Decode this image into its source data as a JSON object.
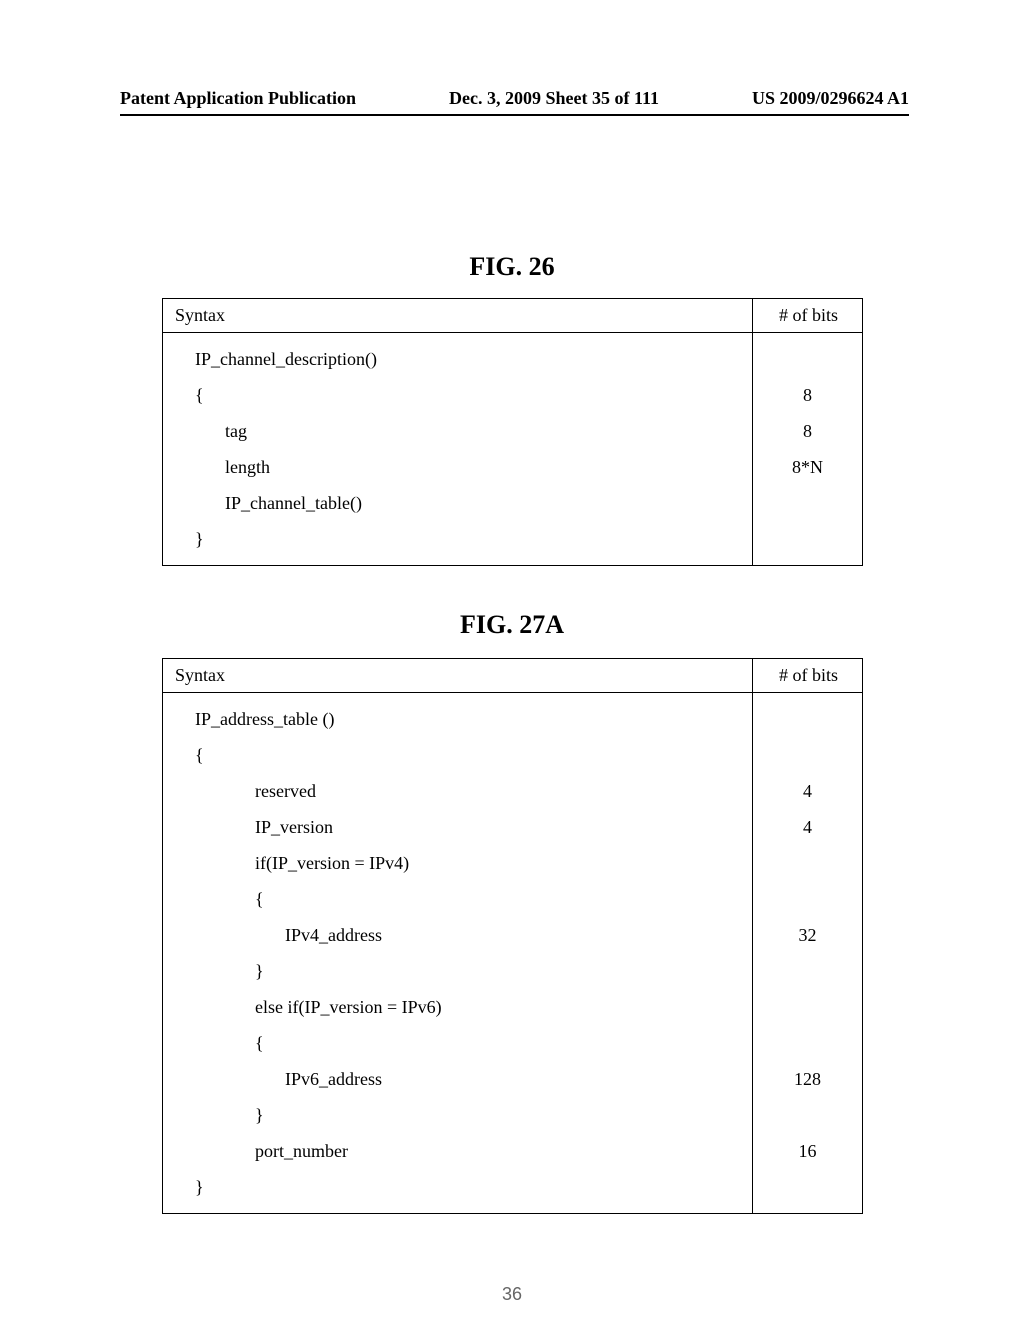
{
  "header": {
    "left": "Patent Application Publication",
    "center": "Dec. 3, 2009  Sheet 35 of 111",
    "right": "US 2009/0296624 A1"
  },
  "fig26": {
    "title": "FIG.  26",
    "head_syntax": "Syntax",
    "head_bits": "# of bits",
    "line1": "IP_channel_description()",
    "line2": "{",
    "line3": "tag",
    "line4": "length",
    "line5": "IP_channel_table()",
    "line6": "}",
    "bits_blank": " ",
    "bits_tag": "8",
    "bits_length": "8",
    "bits_table": "8*N"
  },
  "fig27a": {
    "title": "FIG.  27A",
    "head_syntax": "Syntax",
    "head_bits": "# of bits",
    "l1": "IP_address_table ()",
    "l2": "{",
    "l3": "reserved",
    "l4": "IP_version",
    "l5": "if(IP_version = IPv4)",
    "l6": "{",
    "l7": "IPv4_address",
    "l8": "}",
    "l9": "else if(IP_version = IPv6)",
    "l10": "{",
    "l11": "IPv6_address",
    "l12": "}",
    "l13": "port_number",
    "l14": "}",
    "b_blank": " ",
    "b_reserved": "4",
    "b_ipver": "4",
    "b_ipv4": "32",
    "b_ipv6": "128",
    "b_port": "16"
  },
  "page_number": "36"
}
